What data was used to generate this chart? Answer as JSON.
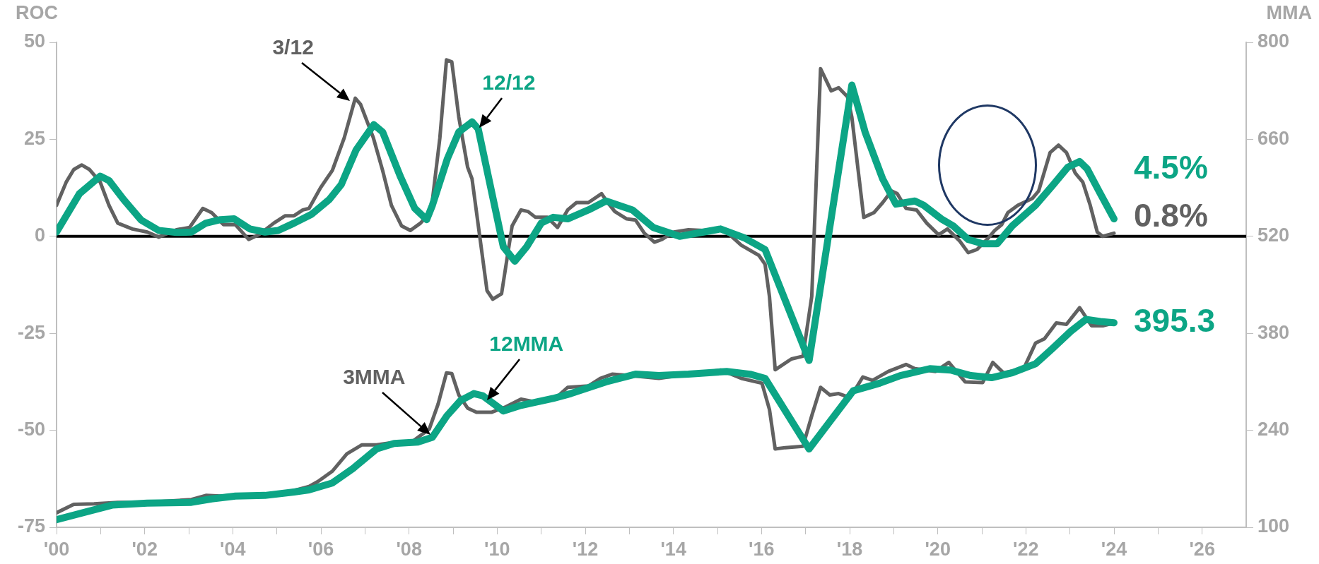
{
  "chart_data": {
    "type": "line",
    "ylabel": "ROC",
    "y2label": "MMA",
    "xlim": [
      2000,
      2027
    ],
    "xticks": [
      {
        "value": 2000,
        "label": "'00"
      },
      {
        "value": 2001,
        "label": null
      },
      {
        "value": 2002,
        "label": "'02"
      },
      {
        "value": 2003,
        "label": null
      },
      {
        "value": 2004,
        "label": "'04"
      },
      {
        "value": 2005,
        "label": null
      },
      {
        "value": 2006,
        "label": "'06"
      },
      {
        "value": 2007,
        "label": null
      },
      {
        "value": 2008,
        "label": "'08"
      },
      {
        "value": 2009,
        "label": null
      },
      {
        "value": 2010,
        "label": "'10"
      },
      {
        "value": 2011,
        "label": null
      },
      {
        "value": 2012,
        "label": "'12"
      },
      {
        "value": 2013,
        "label": null
      },
      {
        "value": 2014,
        "label": "'14"
      },
      {
        "value": 2015,
        "label": null
      },
      {
        "value": 2016,
        "label": "'16"
      },
      {
        "value": 2017,
        "label": null
      },
      {
        "value": 2018,
        "label": "'18"
      },
      {
        "value": 2019,
        "label": null
      },
      {
        "value": 2020,
        "label": "'20"
      },
      {
        "value": 2021,
        "label": null
      },
      {
        "value": 2022,
        "label": "'22"
      },
      {
        "value": 2023,
        "label": null
      },
      {
        "value": 2024,
        "label": "'24"
      },
      {
        "value": 2025,
        "label": null
      },
      {
        "value": 2026,
        "label": "'26"
      }
    ],
    "ylim": [
      -75,
      50
    ],
    "yticks": [
      -75,
      -50,
      -25,
      0,
      25,
      50
    ],
    "y2lim": [
      100,
      800
    ],
    "y2ticks": [
      100,
      240,
      380,
      520,
      660,
      800
    ],
    "grid": false,
    "legend": false,
    "marker": "none",
    "line_style": "solid",
    "ref_lines": [
      {
        "axis": "y",
        "value": 0,
        "color": "#000000"
      }
    ],
    "series": [
      {
        "name": "3/12",
        "color": "#616161",
        "x": [
          2000.0,
          2000.22,
          2000.39,
          2000.57,
          2000.75,
          2000.99,
          2001.19,
          2001.39,
          2001.72,
          2002.06,
          2002.32,
          2002.72,
          2003.02,
          2003.32,
          2003.52,
          2003.79,
          2004.06,
          2004.36,
          2004.59,
          2004.93,
          2005.19,
          2005.39,
          2005.59,
          2005.73,
          2005.99,
          2006.26,
          2006.53,
          2006.78,
          2006.9,
          2007.19,
          2007.4,
          2007.6,
          2007.83,
          2008.03,
          2008.26,
          2008.5,
          2008.7,
          2008.85,
          2008.97,
          2009.13,
          2009.33,
          2009.43,
          2009.6,
          2009.77,
          2009.9,
          2010.1,
          2010.34,
          2010.54,
          2010.7,
          2010.87,
          2011.14,
          2011.37,
          2011.6,
          2011.8,
          2012.07,
          2012.37,
          2012.51,
          2012.67,
          2012.94,
          2013.14,
          2013.34,
          2013.57,
          2013.74,
          2014.01,
          2014.34,
          2014.68,
          2015.01,
          2015.28,
          2015.54,
          2015.94,
          2016.08,
          2016.18,
          2016.31,
          2016.68,
          2016.94,
          2017.14,
          2017.34,
          2017.58,
          2017.75,
          2017.95,
          2018.05,
          2018.32,
          2018.55,
          2018.75,
          2018.95,
          2019.08,
          2019.28,
          2019.52,
          2019.75,
          2020.02,
          2020.22,
          2020.49,
          2020.69,
          2020.89,
          2021.15,
          2021.29,
          2021.45,
          2021.59,
          2021.82,
          2022.15,
          2022.29,
          2022.55,
          2022.74,
          2022.92,
          2023.12,
          2023.29,
          2023.46,
          2023.62,
          2023.74,
          2024.0
        ],
        "values": [
          8,
          14,
          17.2,
          18.4,
          17.2,
          14,
          8,
          3.4,
          1.9,
          1.1,
          -0.2,
          1.7,
          2.3,
          7.2,
          6.1,
          3,
          3,
          -0.8,
          0.4,
          3.4,
          5.3,
          5.3,
          6.8,
          7.2,
          12.5,
          17,
          25.4,
          35.6,
          34,
          25.4,
          17,
          8,
          2.7,
          1.5,
          3.4,
          6.4,
          25.4,
          45.5,
          45,
          30.7,
          17.8,
          14.8,
          0.4,
          -14,
          -16.2,
          -14.8,
          2.7,
          6.8,
          6.4,
          4.9,
          4.9,
          2.3,
          6.8,
          8.7,
          8.7,
          11,
          8.7,
          6.4,
          4.5,
          4.2,
          0.8,
          -1.5,
          -0.8,
          1.1,
          1.7,
          1.5,
          2,
          0.4,
          -2.3,
          -4.9,
          -7.2,
          -15.5,
          -34.4,
          -31.6,
          -30.9,
          -15.5,
          43.2,
          37.5,
          38.3,
          36,
          30.7,
          4.9,
          6.1,
          8.7,
          11.7,
          11,
          7.2,
          6.8,
          3.4,
          0.4,
          1.9,
          -1.1,
          -4.2,
          -3.4,
          -0.4,
          1.5,
          3,
          6.1,
          8,
          9.8,
          11.7,
          21.6,
          23.5,
          21.6,
          16.3,
          14,
          8,
          1.1,
          0,
          0.8
        ],
        "value_labels": [
          null,
          null,
          null,
          null,
          null,
          null,
          null,
          null,
          null,
          null,
          null,
          null,
          null,
          null,
          null,
          null,
          null,
          null,
          null,
          null,
          null,
          null,
          null,
          null,
          null,
          null,
          null,
          null,
          null,
          null,
          null,
          null,
          null,
          null,
          null,
          null,
          null,
          null,
          null,
          null,
          null,
          null,
          null,
          null,
          null,
          null,
          null,
          null,
          null,
          null,
          null,
          null,
          null,
          null,
          null,
          null,
          null,
          null,
          null,
          null,
          null,
          null,
          null,
          null,
          null,
          null,
          null,
          null,
          null,
          null,
          null,
          null,
          null,
          null,
          null,
          null,
          null,
          null,
          null,
          null,
          null,
          null,
          null,
          null,
          null,
          null,
          null,
          null,
          null,
          null,
          null,
          null,
          null,
          null,
          null,
          null,
          null,
          null,
          null,
          null,
          null,
          null,
          null,
          null,
          null,
          null,
          null,
          null,
          null,
          "0.8%"
        ]
      },
      {
        "name": "12/12",
        "color": "#0ca585",
        "x": [
          2000.0,
          2000.52,
          2000.99,
          2001.19,
          2001.52,
          2001.92,
          2002.32,
          2002.72,
          2003.06,
          2003.39,
          2003.72,
          2004.03,
          2004.39,
          2004.73,
          2005.03,
          2005.39,
          2005.79,
          2006.19,
          2006.46,
          2006.8,
          2007.2,
          2007.4,
          2007.8,
          2008.13,
          2008.4,
          2008.53,
          2008.87,
          2009.13,
          2009.43,
          2009.57,
          2009.87,
          2010.14,
          2010.4,
          2010.67,
          2011.0,
          2011.27,
          2011.6,
          2012.07,
          2012.47,
          2013.07,
          2013.54,
          2014.14,
          2014.68,
          2015.07,
          2015.61,
          2016.08,
          2017.08,
          2018.05,
          2018.35,
          2018.75,
          2019.05,
          2019.48,
          2019.68,
          2020.08,
          2020.35,
          2020.69,
          2021.02,
          2021.35,
          2021.69,
          2022.22,
          2022.62,
          2022.95,
          2023.22,
          2023.39,
          2023.69,
          2024.0
        ],
        "values": [
          1.1,
          11,
          15.5,
          14.4,
          9.5,
          4.2,
          1.5,
          1,
          1.1,
          3.4,
          4.3,
          4.5,
          1.9,
          1.1,
          1.5,
          3.4,
          5.7,
          9.5,
          13.3,
          22.3,
          28.8,
          26.9,
          15.5,
          7.2,
          4.3,
          8,
          20,
          26.9,
          29.5,
          27.7,
          11.7,
          -2.7,
          -6.4,
          -2.7,
          3.4,
          4.9,
          4.5,
          6.8,
          9.1,
          6.8,
          2.3,
          0,
          1.1,
          1.9,
          -0.4,
          -3.4,
          -32,
          39,
          26.9,
          14.8,
          8.3,
          9.1,
          8,
          4.5,
          2.7,
          -0.8,
          -1.9,
          -1.9,
          2.7,
          8,
          13.3,
          17.8,
          19.3,
          17.4,
          11,
          4.5
        ],
        "value_labels": [
          null,
          null,
          null,
          null,
          null,
          null,
          null,
          null,
          null,
          null,
          null,
          null,
          null,
          null,
          null,
          null,
          null,
          null,
          null,
          null,
          null,
          null,
          null,
          null,
          null,
          null,
          null,
          null,
          null,
          null,
          null,
          null,
          null,
          null,
          null,
          null,
          null,
          null,
          null,
          null,
          null,
          null,
          null,
          null,
          null,
          null,
          null,
          null,
          null,
          null,
          null,
          null,
          null,
          null,
          null,
          null,
          null,
          null,
          null,
          null,
          null,
          null,
          null,
          null,
          null,
          "4.5%"
        ]
      },
      {
        "name": "3MMA",
        "color": "#616161",
        "axis": "y2",
        "x": [
          2000.0,
          2000.39,
          2000.85,
          2001.39,
          2002.06,
          2003.06,
          2003.39,
          2003.72,
          2004.06,
          2004.73,
          2005.39,
          2005.73,
          2005.93,
          2006.26,
          2006.59,
          2006.93,
          2007.26,
          2007.6,
          2008.06,
          2008.46,
          2008.66,
          2008.85,
          2008.97,
          2009.13,
          2009.33,
          2009.53,
          2009.87,
          2010.2,
          2010.54,
          2010.87,
          2011.34,
          2011.6,
          2012.07,
          2012.34,
          2012.61,
          2013.01,
          2013.67,
          2014.34,
          2015.08,
          2015.54,
          2016.01,
          2016.18,
          2016.31,
          2016.54,
          2016.94,
          2017.14,
          2017.34,
          2017.55,
          2017.75,
          2018.01,
          2018.3,
          2018.52,
          2018.88,
          2019.28,
          2019.48,
          2019.95,
          2020.25,
          2020.62,
          2021.02,
          2021.25,
          2021.49,
          2021.95,
          2022.22,
          2022.42,
          2022.69,
          2022.92,
          2023.22,
          2023.49,
          2023.76,
          2024.0
        ],
        "values": [
          121,
          133,
          134,
          136,
          136,
          140,
          146,
          145,
          146,
          147,
          153,
          159,
          166,
          181,
          206,
          219,
          219,
          222,
          223,
          242,
          278,
          323,
          322,
          291,
          272,
          266,
          266,
          274,
          285,
          281,
          287,
          302,
          304,
          315,
          321,
          319,
          315,
          321,
          327,
          315,
          308,
          270,
          213,
          215,
          217,
          261,
          302,
          291,
          293,
          287,
          317,
          312,
          325,
          335,
          329,
          325,
          338,
          310,
          309,
          338,
          323,
          329,
          366,
          372,
          395,
          393,
          417,
          391,
          391,
          395
        ]
      },
      {
        "name": "12MMA",
        "color": "#0ca585",
        "axis": "y2",
        "x": [
          2000.0,
          2000.72,
          2001.26,
          2002.06,
          2003.06,
          2003.52,
          2004.06,
          2004.73,
          2005.39,
          2005.73,
          2006.26,
          2006.73,
          2007.26,
          2007.66,
          2008.2,
          2008.53,
          2008.86,
          2009.17,
          2009.47,
          2009.67,
          2010.14,
          2010.54,
          2011.27,
          2011.67,
          2012.47,
          2013.14,
          2013.67,
          2014.34,
          2015.21,
          2015.74,
          2016.08,
          2017.08,
          2018.08,
          2018.68,
          2019.15,
          2019.82,
          2020.29,
          2020.75,
          2021.22,
          2021.69,
          2022.22,
          2022.62,
          2023.02,
          2023.36,
          2023.69,
          2024.0
        ],
        "values": [
          111,
          123,
          132,
          135,
          136,
          141,
          145,
          146,
          151,
          154,
          164,
          185,
          213,
          221,
          223,
          230,
          261,
          283,
          293,
          290,
          268,
          276,
          286,
          293,
          310,
          321,
          319,
          321,
          325,
          321,
          315,
          213,
          297,
          308,
          319,
          329,
          327,
          319,
          316,
          323,
          336,
          359,
          383,
          400,
          397,
          395.3
        ],
        "value_labels": [
          null,
          null,
          null,
          null,
          null,
          null,
          null,
          null,
          null,
          null,
          null,
          null,
          null,
          null,
          null,
          null,
          null,
          null,
          null,
          null,
          null,
          null,
          null,
          null,
          null,
          null,
          null,
          null,
          null,
          null,
          null,
          null,
          null,
          null,
          null,
          null,
          null,
          null,
          null,
          null,
          null,
          null,
          null,
          null,
          null,
          "395.3"
        ]
      }
    ]
  }
}
